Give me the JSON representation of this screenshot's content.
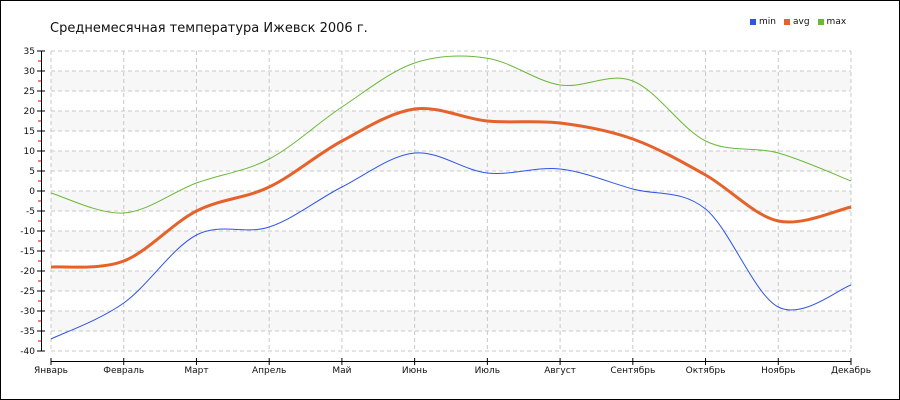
{
  "chart_data": {
    "type": "line",
    "title": "Среднемесячная температура Ижевск  2006 г.",
    "xlabel": "",
    "ylabel": "",
    "ylim": [
      -40,
      35
    ],
    "yticks": [
      35,
      30,
      25,
      20,
      15,
      10,
      5,
      0,
      -5,
      -10,
      -15,
      -20,
      -25,
      -30,
      -35,
      -40
    ],
    "grid": true,
    "legend_position": "top-right",
    "categories": [
      "Январь",
      "Февраль",
      "Март",
      "Апрель",
      "Май",
      "Июнь",
      "Июль",
      "Август",
      "Сентябрь",
      "Октябрь",
      "Ноябрь",
      "Декабрь"
    ],
    "series": [
      {
        "name": "min",
        "color": "#2f55e6",
        "values": [
          -37,
          -28,
          -11,
          -9,
          1,
          9.5,
          4.5,
          5.5,
          0.5,
          -4.5,
          -29,
          -23.5
        ]
      },
      {
        "name": "avg",
        "color": "#e5622b",
        "values": [
          -19,
          -17.5,
          -5,
          1,
          12.5,
          20.5,
          17.5,
          17,
          13,
          4,
          -7.5,
          -4
        ]
      },
      {
        "name": "max",
        "color": "#6ab83a",
        "values": [
          -0.5,
          -5.5,
          2,
          8,
          21,
          32,
          33.2,
          26.5,
          27.5,
          12.5,
          9.5,
          2.5
        ]
      }
    ]
  }
}
